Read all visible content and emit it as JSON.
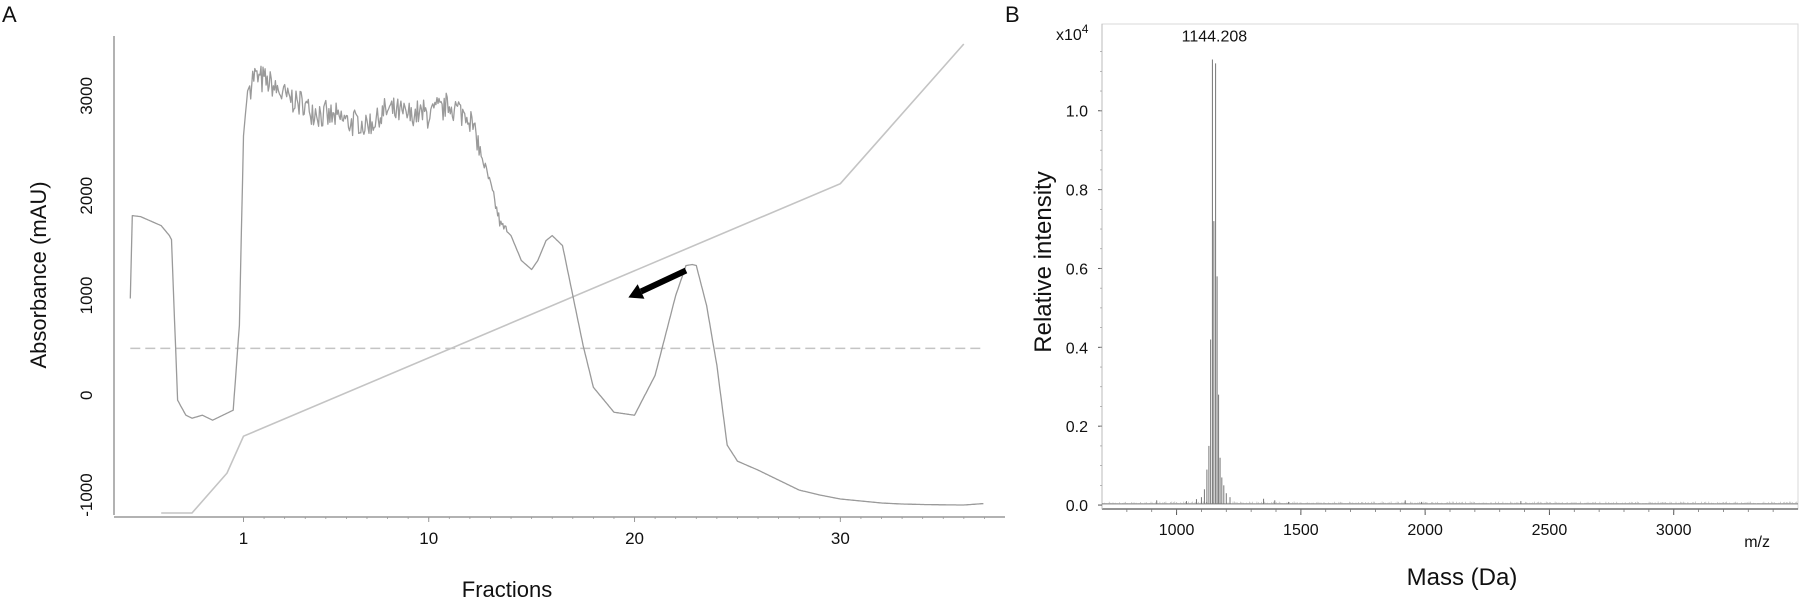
{
  "figure": {
    "panel_a_letter": "A",
    "panel_b_letter": "B"
  },
  "colors": {
    "trace": "#9a9a9a",
    "trace_light": "#c4c4c4",
    "axis": "#999999",
    "arrow": "#000000",
    "spectrum": "#777777"
  },
  "chart_data": [
    {
      "id": "A",
      "type": "line",
      "xlabel": "Fractions",
      "ylabel": "Absorbance (mAU)",
      "xticks": [
        1,
        10,
        20,
        30
      ],
      "yticks": [
        -1000,
        0,
        1000,
        2000,
        3000
      ],
      "xlim": [
        -5,
        38
      ],
      "ylim": [
        -1200,
        3600
      ],
      "series": [
        {
          "role": "absorbance",
          "x": [
            -4.5,
            -4.4,
            -4,
            -3,
            -2.6,
            -2.5,
            -2.2,
            -1.8,
            -1.5,
            -1,
            -0.5,
            0,
            0.5,
            0.8,
            1.0,
            1.2,
            1.5,
            2,
            3,
            4,
            5,
            6,
            7,
            8,
            9,
            10,
            11,
            12,
            12.5,
            13,
            13.5,
            14,
            14.5,
            15,
            15.3,
            15.7,
            16,
            16.5,
            17,
            17.5,
            18,
            19,
            20,
            21,
            22,
            22.5,
            22.8,
            23,
            23.5,
            24,
            24.5,
            25,
            26,
            27,
            28,
            29,
            30,
            31,
            32,
            33,
            34,
            35,
            36,
            37
          ],
          "y": [
            970,
            1800,
            1790,
            1700,
            1600,
            1560,
            -50,
            -200,
            -230,
            -200,
            -250,
            -200,
            -150,
            700,
            2600,
            3050,
            3200,
            3150,
            3000,
            2900,
            2800,
            2750,
            2700,
            2850,
            2800,
            2820,
            2900,
            2800,
            2450,
            2100,
            1700,
            1600,
            1350,
            1260,
            1350,
            1550,
            1600,
            1500,
            1000,
            500,
            80,
            -170,
            -200,
            200,
            1000,
            1300,
            1310,
            1300,
            900,
            300,
            -500,
            -660,
            -750,
            -850,
            -950,
            -1000,
            -1040,
            -1060,
            -1080,
            -1090,
            -1095,
            -1098,
            -1100,
            -1085
          ],
          "noisy_range": [
            1.3,
            12.5
          ],
          "noise_amplitude": 130
        },
        {
          "role": "gradient",
          "x": [
            -3.0,
            -1.5,
            0.2,
            1.0,
            30.0,
            36.0
          ],
          "y": [
            -1180,
            -1180,
            -780,
            -410,
            2120,
            3520
          ]
        },
        {
          "role": "threshold",
          "x": [
            -4.5,
            37
          ],
          "y": [
            470,
            470
          ]
        }
      ],
      "annotations": [
        {
          "type": "arrow",
          "from_xy": [
            22.5,
            1250
          ],
          "to_xy": [
            19.7,
            980
          ]
        }
      ]
    },
    {
      "id": "B",
      "type": "line",
      "xlabel": "Mass (Da)",
      "ylabel": "Relative intensity",
      "x_unit_label": "m/z",
      "y_scale_label": "x10",
      "y_scale_exponent": "4",
      "xticks": [
        1000,
        1500,
        2000,
        2500,
        3000
      ],
      "yticks": [
        "0.0",
        "0.2",
        "0.4",
        "0.6",
        "0.8",
        "1.0"
      ],
      "xlim": [
        700,
        3500
      ],
      "ylim": [
        -0.01,
        1.22
      ],
      "peak_label": "1144.208",
      "peak_label_x": 1144.208,
      "baseline": 0.003,
      "peaks": [
        {
          "x": 1100,
          "y": 0.02
        },
        {
          "x": 1112,
          "y": 0.04
        },
        {
          "x": 1122,
          "y": 0.09
        },
        {
          "x": 1130,
          "y": 0.15
        },
        {
          "x": 1137,
          "y": 0.42
        },
        {
          "x": 1144.2,
          "y": 1.13
        },
        {
          "x": 1150,
          "y": 0.72
        },
        {
          "x": 1157,
          "y": 1.12
        },
        {
          "x": 1163,
          "y": 0.58
        },
        {
          "x": 1169,
          "y": 0.28
        },
        {
          "x": 1175,
          "y": 0.12
        },
        {
          "x": 1182,
          "y": 0.07
        },
        {
          "x": 1190,
          "y": 0.05
        },
        {
          "x": 1200,
          "y": 0.03
        },
        {
          "x": 1215,
          "y": 0.02
        },
        {
          "x": 920,
          "y": 0.012
        },
        {
          "x": 1040,
          "y": 0.01
        },
        {
          "x": 1080,
          "y": 0.015
        },
        {
          "x": 1350,
          "y": 0.016
        },
        {
          "x": 1395,
          "y": 0.012
        },
        {
          "x": 1450,
          "y": 0.008
        },
        {
          "x": 1920,
          "y": 0.012
        },
        {
          "x": 1985,
          "y": 0.008
        },
        {
          "x": 2385,
          "y": 0.01
        },
        {
          "x": 2845,
          "y": 0.004
        }
      ]
    }
  ]
}
